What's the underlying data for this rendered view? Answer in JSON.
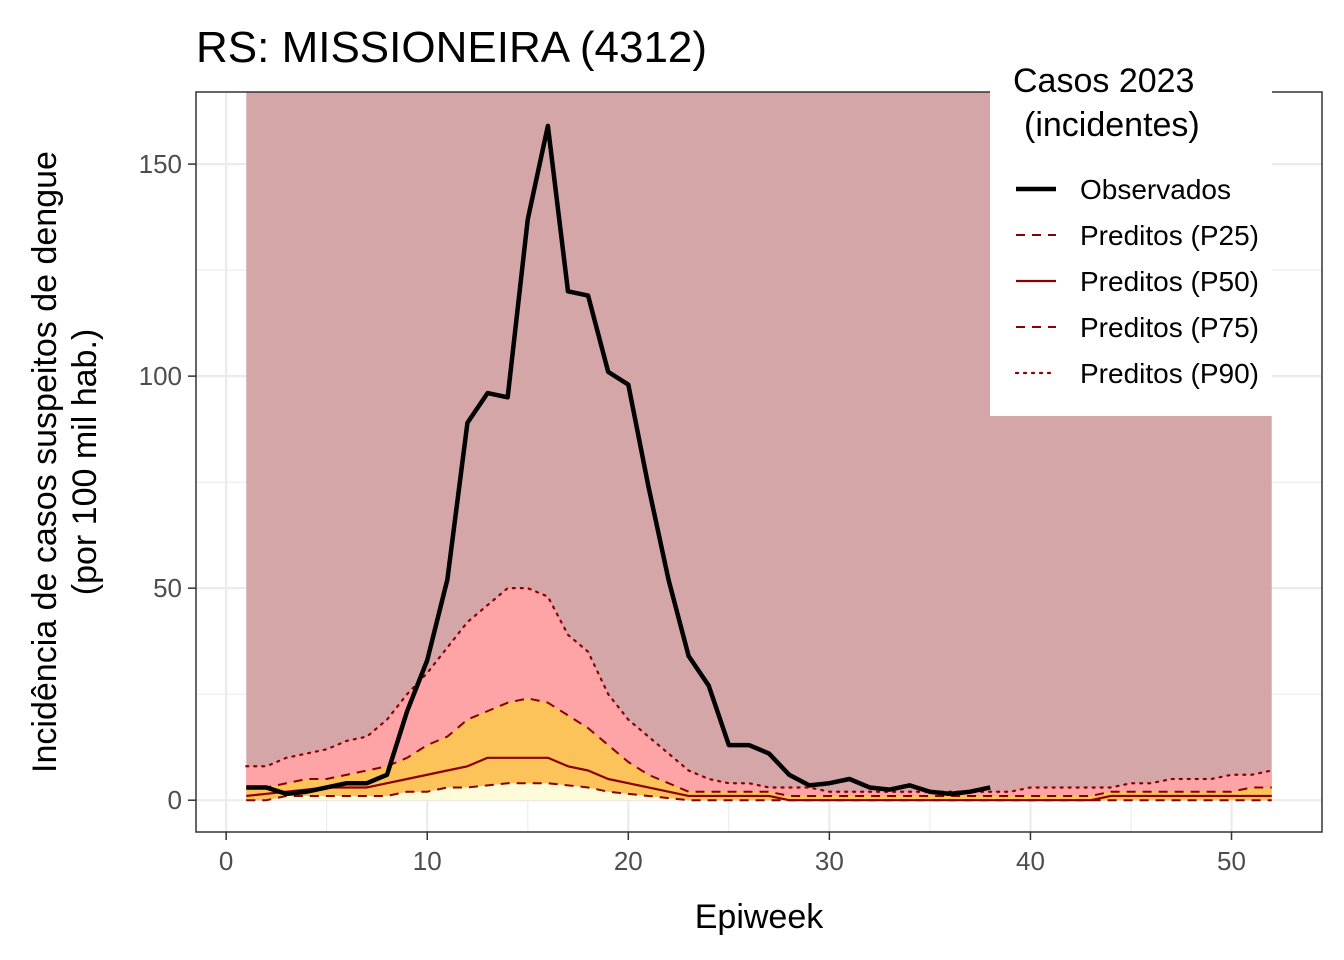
{
  "chart_data": {
    "type": "line",
    "title": "RS: MISSIONEIRA (4312)",
    "xlabel": "Epiweek",
    "ylabel_line1": "Incidência de casos suspeitos de dengue",
    "ylabel_line2": "(por 100 mil hab.)",
    "xlim": [
      -1.5,
      54.5
    ],
    "ylim": [
      -7.5,
      167
    ],
    "x_ticks": [
      0,
      10,
      20,
      30,
      40,
      50
    ],
    "y_ticks": [
      0,
      50,
      100,
      150
    ],
    "grid": true,
    "legend": {
      "position": "top-right",
      "title_line1": "Casos 2023",
      "title_line2": "(incidentes)",
      "entries": [
        "Observados",
        "Preditos (P25)",
        "Preditos (P50)",
        "Preditos (P75)",
        "Preditos (P90)"
      ]
    },
    "colors": {
      "background_band": "#d5a6a8",
      "band_p75_p90": "#fea3a6",
      "band_p50_p75": "#fcc35b",
      "band_p25_p50": "#fcc35b",
      "band_0_p25": "#fefbd8",
      "observed": "#000000",
      "predicted": "#8b0000"
    },
    "background_band_range": {
      "x": [
        1,
        52
      ],
      "y": [
        0,
        167
      ]
    },
    "weeks": [
      1,
      2,
      3,
      4,
      5,
      6,
      7,
      8,
      9,
      10,
      11,
      12,
      13,
      14,
      15,
      16,
      17,
      18,
      19,
      20,
      21,
      22,
      23,
      24,
      25,
      26,
      27,
      28,
      29,
      30,
      31,
      32,
      33,
      34,
      35,
      36,
      37,
      38,
      39,
      40,
      41,
      42,
      43,
      44,
      45,
      46,
      47,
      48,
      49,
      50,
      51,
      52
    ],
    "series": [
      {
        "name": "Preditos (P25)",
        "values": [
          0,
          0,
          1,
          1,
          1,
          1,
          1,
          1,
          2,
          2,
          3,
          3,
          3.5,
          4,
          4,
          4,
          3.5,
          3,
          2,
          1.5,
          1,
          0.5,
          0,
          0,
          0,
          0,
          0,
          0,
          0,
          0,
          0,
          0,
          0,
          0,
          0,
          0,
          0,
          0,
          0,
          0,
          0,
          0,
          0,
          0,
          0,
          0,
          0,
          0,
          0,
          0,
          0,
          0
        ]
      },
      {
        "name": "Preditos (P50)",
        "values": [
          1,
          1.5,
          2,
          2.5,
          3,
          3,
          3,
          4,
          5,
          6,
          7,
          8,
          10,
          10,
          10,
          10,
          8,
          7,
          5,
          4,
          3,
          2,
          1,
          1,
          1,
          1,
          1,
          0,
          0,
          0,
          0,
          0,
          0,
          0,
          0,
          0,
          0,
          0,
          0,
          0,
          0,
          0,
          0,
          1,
          1,
          1,
          1,
          1,
          1,
          1,
          1,
          1
        ]
      },
      {
        "name": "Preditos (P75)",
        "values": [
          3,
          3,
          4,
          5,
          5,
          6,
          7,
          8,
          10,
          13,
          15,
          19,
          21,
          23,
          24,
          23,
          20,
          17,
          13,
          9,
          6,
          4,
          2,
          2,
          2,
          2,
          2,
          1,
          1,
          1,
          1,
          1,
          1,
          1,
          1,
          1,
          1,
          1,
          1,
          1,
          1,
          1,
          1,
          2,
          2,
          2,
          2,
          2,
          2,
          2,
          3,
          3
        ]
      },
      {
        "name": "Preditos (P90)",
        "values": [
          8,
          8,
          10,
          11,
          12,
          14,
          15,
          19,
          25,
          30,
          36,
          42,
          46,
          50,
          50,
          48,
          39,
          35,
          25,
          19,
          15,
          11,
          7,
          5,
          4,
          4,
          3,
          3,
          3,
          2,
          2,
          2,
          2,
          2,
          2,
          2,
          2,
          2,
          2,
          3,
          3,
          3,
          3,
          3,
          4,
          4,
          5,
          5,
          5,
          6,
          6,
          7
        ]
      },
      {
        "name": "Observados",
        "values": [
          3,
          3,
          1.5,
          2,
          3,
          4,
          4,
          6,
          21,
          33,
          52,
          89,
          96,
          95,
          137,
          159,
          120,
          119,
          101,
          98,
          74,
          52,
          34,
          27,
          13,
          13,
          11,
          6,
          3.5,
          4,
          5,
          3,
          2.5,
          3.5,
          2,
          1.5,
          2,
          3
        ]
      }
    ]
  }
}
